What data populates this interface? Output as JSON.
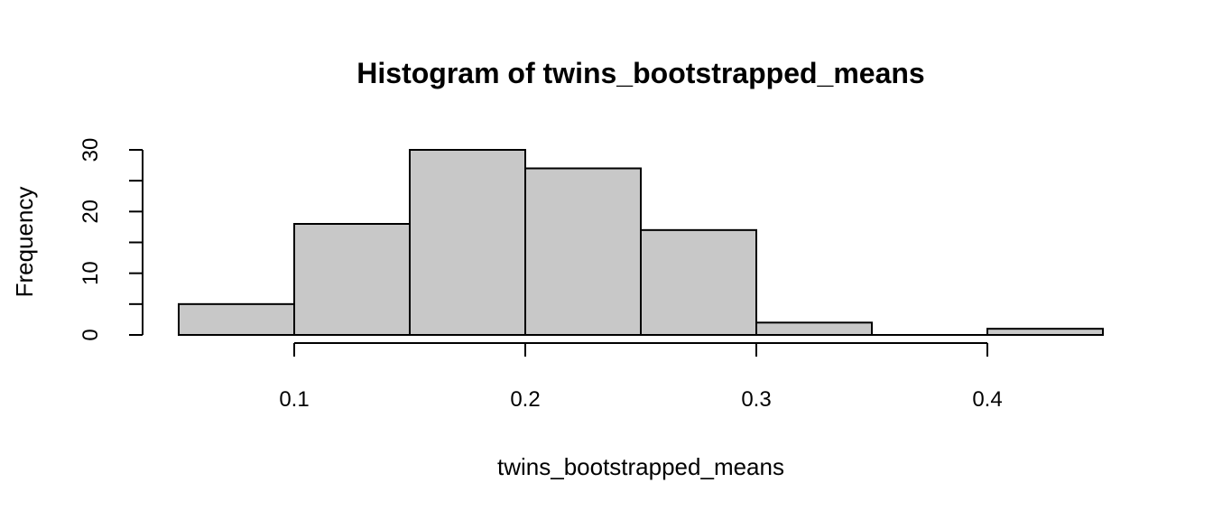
{
  "chart_data": {
    "type": "bar",
    "title": "Histogram of twins_bootstrapped_means",
    "xlabel": "twins_bootstrapped_means",
    "ylabel": "Frequency",
    "bins": [
      {
        "start": 0.05,
        "end": 0.1,
        "count": 5
      },
      {
        "start": 0.1,
        "end": 0.15,
        "count": 18
      },
      {
        "start": 0.15,
        "end": 0.2,
        "count": 30
      },
      {
        "start": 0.2,
        "end": 0.25,
        "count": 27
      },
      {
        "start": 0.25,
        "end": 0.3,
        "count": 17
      },
      {
        "start": 0.3,
        "end": 0.35,
        "count": 2
      },
      {
        "start": 0.35,
        "end": 0.4,
        "count": 0
      },
      {
        "start": 0.4,
        "end": 0.45,
        "count": 1
      }
    ],
    "xlim": [
      0.05,
      0.45
    ],
    "ylim": [
      0,
      30
    ],
    "x_ticks": [
      0.1,
      0.2,
      0.3,
      0.4
    ],
    "x_tick_labels": [
      "0.1",
      "0.2",
      "0.3",
      "0.4"
    ],
    "y_ticks": [
      0,
      5,
      10,
      15,
      20,
      25,
      30
    ],
    "y_tick_labels": [
      "0",
      "10",
      "20",
      "30"
    ],
    "y_labeled_ticks": [
      0,
      10,
      20,
      30
    ],
    "colors": {
      "bar_fill": "#c8c8c8",
      "bar_stroke": "#000000"
    },
    "grid": false,
    "legend": "none"
  }
}
